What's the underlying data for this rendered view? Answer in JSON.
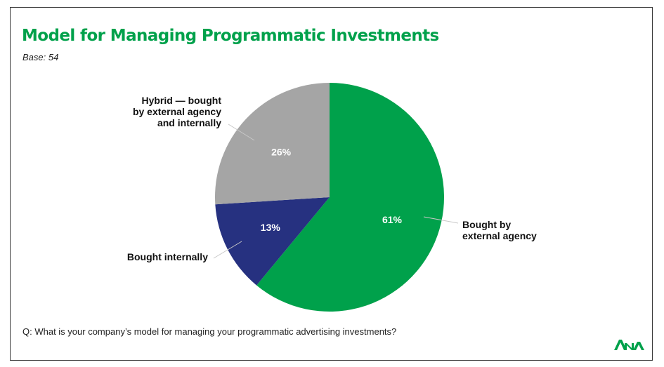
{
  "title": "Model for Managing Programmatic Investments",
  "base": "Base: 54",
  "question": "Q: What is your company’s model for managing your programmatic advertising investments?",
  "logo": "ANA",
  "colors": {
    "brand": "#00a14b",
    "external": "#00a14b",
    "internal": "#263180",
    "hybrid": "#a5a5a5"
  },
  "chart_data": {
    "type": "pie",
    "title": "Model for Managing Programmatic Investments",
    "slices": [
      {
        "label": [
          "Bought by",
          "external agency"
        ],
        "value": 61,
        "pct_label": "61%",
        "color": "#00a14b"
      },
      {
        "label": [
          "Bought internally"
        ],
        "value": 13,
        "pct_label": "13%",
        "color": "#263180"
      },
      {
        "label": [
          "Hybrid — bought",
          "by external agency",
          "and internally"
        ],
        "value": 26,
        "pct_label": "26%",
        "color": "#a5a5a5"
      }
    ]
  }
}
